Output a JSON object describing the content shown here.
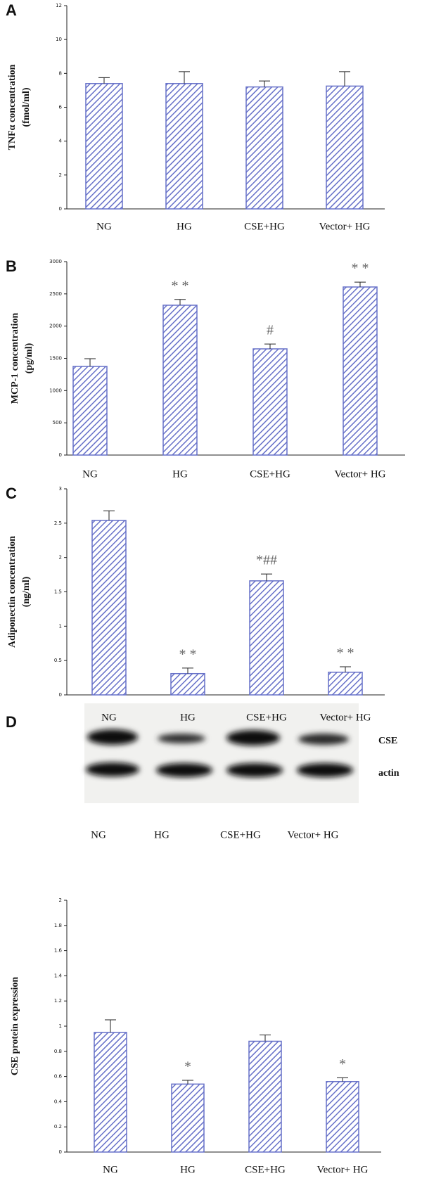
{
  "chart_data": [
    {
      "type": "bar",
      "panel": "A",
      "y_label": [
        "TNFα concentration",
        "(fmol/ml)"
      ],
      "categories": [
        "NG",
        "HG",
        "CSE+HG",
        "Vector+ HG"
      ],
      "values": [
        7.4,
        7.4,
        7.2,
        7.25
      ],
      "errors": [
        0.35,
        0.7,
        0.35,
        0.85
      ],
      "color": "#6670c8",
      "ylim": [
        0,
        12
      ],
      "yticks": [
        0,
        2,
        4,
        6,
        8,
        10,
        12
      ]
    },
    {
      "type": "bar",
      "panel": "B",
      "y_label": [
        "MCP-1 concentration",
        "(pg/ml)"
      ],
      "categories": [
        "NG",
        "HG",
        "CSE+HG",
        "Vector+ HG"
      ],
      "values": [
        1375,
        2324,
        1647,
        2607
      ],
      "errors": [
        120,
        90,
        75,
        75
      ],
      "annotations": [
        null,
        "* *",
        "#",
        "* *"
      ],
      "color": "#6670c8",
      "ylim": [
        0,
        3000
      ],
      "yticks": [
        0,
        500,
        1000,
        1500,
        2000,
        2500,
        3000
      ]
    },
    {
      "type": "bar",
      "panel": "C",
      "y_label": [
        "Adiponectin concentration",
        "(ng/ml)"
      ],
      "categories": [
        "NG",
        "HG",
        "CSE+HG",
        "Vector+ HG"
      ],
      "values": [
        2.54,
        0.31,
        1.66,
        0.33
      ],
      "errors": [
        0.14,
        0.08,
        0.1,
        0.08
      ],
      "annotations": [
        null,
        "* *",
        "*##",
        "* *"
      ],
      "color": "#6670c8",
      "ylim": [
        0,
        3
      ],
      "yticks": [
        0,
        0.5,
        1,
        1.5,
        2,
        2.5,
        3
      ]
    },
    {
      "type": "bar",
      "panel": "D",
      "y_label": [
        "CSE protein expression"
      ],
      "blot_labels": [
        "CSE",
        "actin"
      ],
      "categories": [
        "NG",
        "HG",
        "CSE+HG",
        "Vector+ HG"
      ],
      "values": [
        0.95,
        0.54,
        0.88,
        0.56
      ],
      "errors": [
        0.1,
        0.03,
        0.05,
        0.03
      ],
      "annotations": [
        null,
        "*",
        null,
        "*"
      ],
      "color": "#6670c8",
      "ylim": [
        0,
        2
      ],
      "yticks": [
        0,
        0.2,
        0.4,
        0.6,
        0.8,
        1,
        1.2,
        1.4,
        1.6,
        1.8,
        2
      ]
    }
  ]
}
